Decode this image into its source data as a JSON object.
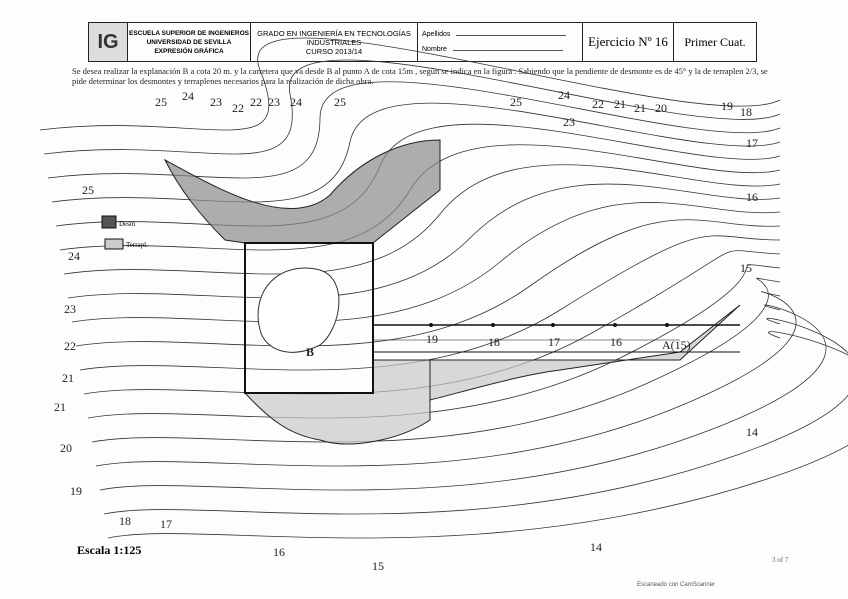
{
  "header": {
    "logo": "IG",
    "school": [
      "ESCUELA SUPERIOR DE INGENIEROS",
      "UNIVERSIDAD DE SEVILLA",
      "EXPRESIÓN GRÁFICA"
    ],
    "degree": [
      "GRADO EN INGENIERÍA EN TECNOLOGÍAS",
      "INDUSTRIALES",
      "CURSO 2013/14"
    ],
    "surname_label": "Apellidos",
    "name_label": "Nombre",
    "exercise": "Ejercicio Nº 16",
    "term": "Primer Cuat."
  },
  "statement": "Se desea realizar la explanación B a cota 20 m. y la carretera que va desde B al punto A de cota 15m , según se indica en la figura . Sabiendo que la pendiente de desmonte es de 45° y la de terraplen 2/3, se pide determinar los desmontes y terraplenes necesarios para la realización de dicha obra.",
  "contour_labels": [
    "25",
    "24",
    "23",
    "22",
    "22",
    "23",
    "24",
    "25",
    "25",
    "24",
    "23",
    "22",
    "21",
    "21",
    "20",
    "19",
    "18",
    "17",
    "16",
    "15",
    "14",
    "14",
    "15",
    "16",
    "17",
    "18",
    "19",
    "20",
    "21",
    "21",
    "22",
    "23",
    "24",
    "25"
  ],
  "road_labels": [
    "19",
    "18",
    "17",
    "16",
    "A(15)"
  ],
  "platform_label": "B",
  "legend": {
    "cut": "Desm",
    "fill": "Terrapl."
  },
  "scale": "Escala 1:125",
  "page_note": "3 of 7",
  "watermark": "Escaneado con CamScanner",
  "colors": {
    "ink": "#222222",
    "cut_shade": "#8a8a8a",
    "fill_shade": "#c8c8c8"
  }
}
